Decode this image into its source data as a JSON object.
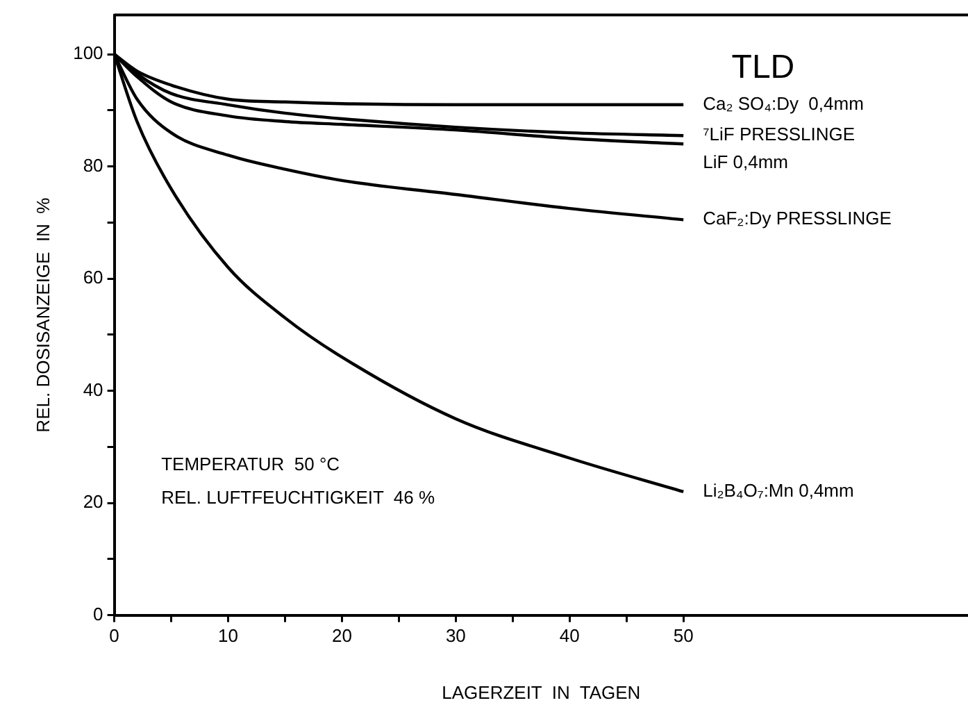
{
  "chart_data": {
    "type": "line",
    "title": "TLD",
    "xlabel": "LAGERZEIT  IN  TAGEN",
    "ylabel": "REL. DOSISANZEIGE  IN  %",
    "x": [
      0,
      2,
      5,
      10,
      15,
      20,
      30,
      40,
      50
    ],
    "series": [
      {
        "name": "Ca₂ SO₄:Dy  0,4mm",
        "color": "#000000",
        "values": [
          100,
          97,
          94.5,
          92,
          91.5,
          91.2,
          91,
          91,
          91
        ]
      },
      {
        "name": "⁷LiF PRESSLINGE",
        "color": "#000000",
        "values": [
          100,
          96.5,
          93,
          91,
          89.5,
          88.5,
          87,
          86,
          85.5
        ]
      },
      {
        "name": "LiF 0,4mm",
        "color": "#000000",
        "values": [
          100,
          96,
          91.5,
          89,
          88,
          87.5,
          86.5,
          85,
          84
        ]
      },
      {
        "name": "CaF₂:Dy PRESSLINGE",
        "color": "#000000",
        "values": [
          100,
          92,
          86,
          82,
          79.5,
          77.5,
          75,
          72.5,
          70.5
        ]
      },
      {
        "name": "Li₂B₄O₇:Mn 0,4mm",
        "color": "#000000",
        "values": [
          100,
          88,
          76,
          62,
          53,
          46,
          35,
          28,
          22
        ]
      }
    ],
    "xlim": [
      0,
      75
    ],
    "ylim": [
      0,
      107
    ],
    "xticks": [
      0,
      {
        "value": 5,
        "label": null
      },
      10,
      {
        "value": 15,
        "label": null
      },
      20,
      {
        "value": 25,
        "label": null
      },
      30,
      {
        "value": 35,
        "label": null
      },
      40,
      {
        "value": 45,
        "label": null
      },
      50
    ],
    "yticks": [
      0,
      {
        "value": 10,
        "label": null
      },
      20,
      {
        "value": 30,
        "label": null
      },
      40,
      {
        "value": 50,
        "label": null
      },
      60,
      {
        "value": 70,
        "label": null
      },
      80,
      {
        "value": 90,
        "label": null
      },
      100
    ],
    "annotations": [
      "TEMPERATUR  50 °C",
      "REL. LUFTFEUCHTIGKEIT  46 %"
    ],
    "grid": false,
    "legend": false,
    "marker": "none",
    "line_style": "solid"
  }
}
